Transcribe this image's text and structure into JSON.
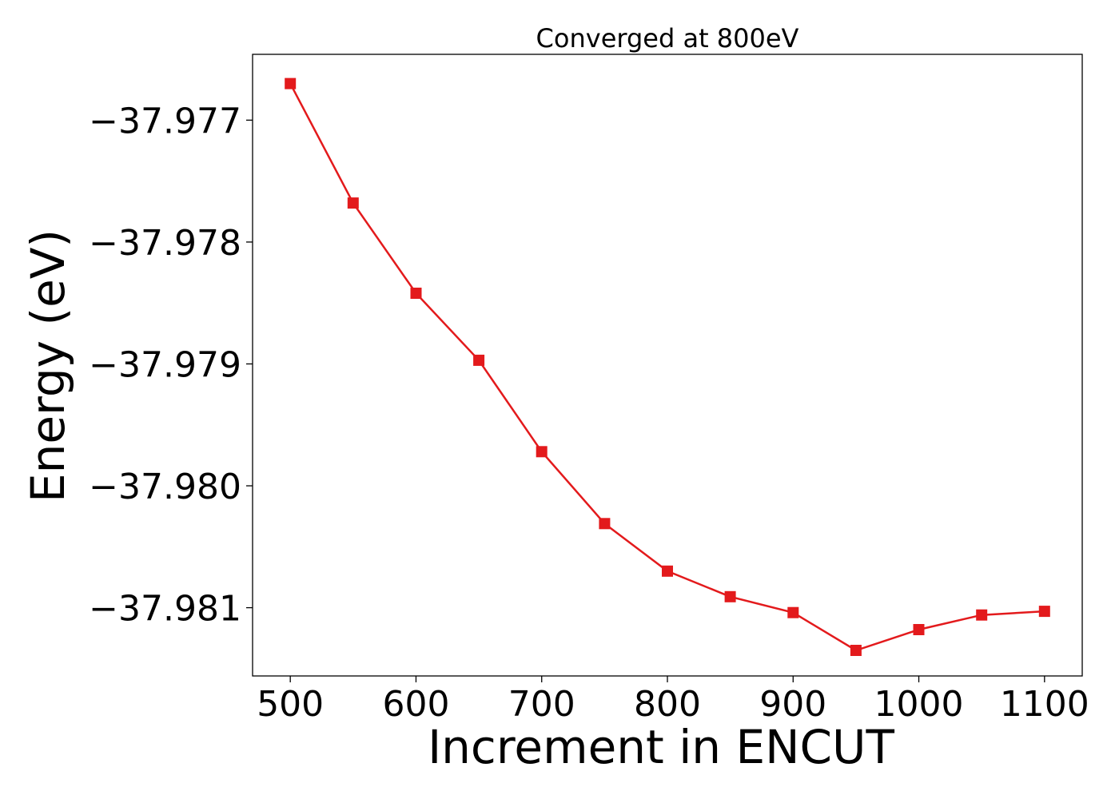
{
  "chart_data": {
    "type": "line",
    "title": "Converged at 800eV",
    "xlabel": "Increment in ENCUT",
    "ylabel": "Energy (eV)",
    "x": [
      500,
      550,
      600,
      650,
      700,
      750,
      800,
      850,
      900,
      950,
      1000,
      1050,
      1100
    ],
    "series": [
      {
        "values": [
          -37.9767,
          -37.97768,
          -37.97842,
          -37.97897,
          -37.97972,
          -37.98031,
          -37.9807,
          -37.98091,
          -37.98104,
          -37.98135,
          -37.98118,
          -37.98106,
          -37.98103
        ],
        "color": "#e31a1c",
        "marker": "square"
      }
    ],
    "xticks": [
      500,
      600,
      700,
      800,
      900,
      1000,
      1100
    ],
    "xtick_labels": [
      "500",
      "600",
      "700",
      "800",
      "900",
      "1000",
      "1100"
    ],
    "yticks": [
      -37.977,
      -37.978,
      -37.979,
      -37.98,
      -37.981
    ],
    "ytick_labels": [
      "−37.977",
      "−37.978",
      "−37.979",
      "−37.980",
      "−37.981"
    ],
    "xlim": [
      470,
      1130
    ],
    "ylim": [
      -37.98156,
      -37.97646
    ],
    "grid": false,
    "legend": false
  }
}
